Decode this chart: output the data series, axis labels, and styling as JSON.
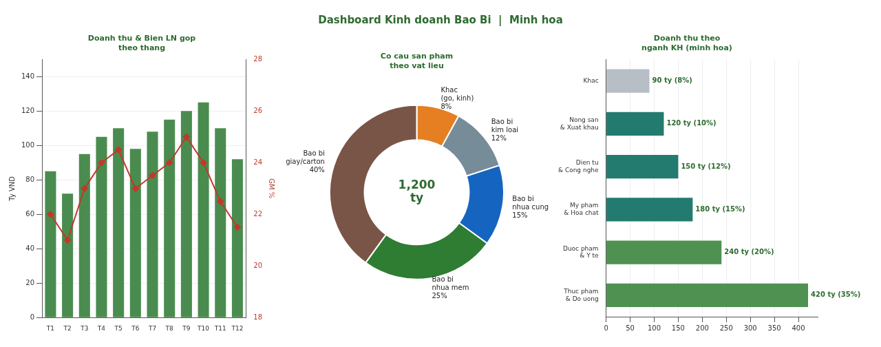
{
  "chart_data": [
    {
      "type": "other",
      "title": "Dashboard Kinh doanh Bao Bi  |  Minh hoa"
    },
    {
      "type": "bar",
      "title": "Doanh thu & Bien LN gop\ntheo thang",
      "ylabel": "Ty VND",
      "y2label": "GM %",
      "categories": [
        "T1",
        "T2",
        "T3",
        "T4",
        "T5",
        "T6",
        "T7",
        "T8",
        "T9",
        "T10",
        "T11",
        "T12"
      ],
      "series": [
        {
          "type": "bar",
          "color": "#4a8c4f",
          "values": [
            85,
            72,
            95,
            105,
            110,
            98,
            108,
            115,
            120,
            125,
            110,
            92
          ]
        },
        {
          "type": "line",
          "axis": "y2",
          "color": "#c0392b",
          "values": [
            22,
            21,
            23,
            24,
            24.5,
            23,
            23.5,
            24,
            25,
            24,
            22.5,
            21.5
          ]
        }
      ],
      "ylim": [
        0,
        150
      ],
      "yticks": [
        0,
        20,
        40,
        60,
        80,
        100,
        120,
        140
      ],
      "y2lim": [
        18,
        28
      ],
      "y2ticks": [
        18,
        20,
        22,
        24,
        26,
        28
      ],
      "grid": "y",
      "marker": "diamond",
      "line_style": "solid",
      "legend": false
    },
    {
      "type": "donut",
      "title": "Co cau san pham\ntheo vat lieu",
      "categories": [
        "Khac\n(go, kinh)",
        "Bao bi\nkim loai",
        "Bao bi\nnhua cung",
        "Bao bi\nnhua mem",
        "Bao bi\ngiay/carton"
      ],
      "values": [
        8,
        12,
        15,
        25,
        40
      ],
      "value_labels": [
        "8%",
        "12%",
        "15%",
        "25%",
        "40%"
      ],
      "colors": [
        "#e67e22",
        "#778c99",
        "#1565c0",
        "#2e7d32",
        "#795548"
      ],
      "annotations": [
        "1,200\nty"
      ],
      "legend": false
    },
    {
      "type": "bar",
      "orientation": "horizontal",
      "title": "Doanh thu theo\nnganh KH (minh hoa)",
      "categories": [
        "Khac",
        "Nong san\n& Xuat khau",
        "Dien tu\n& Cong nghe",
        "My pham\n& Hoa chat",
        "Duoc pham\n& Y te",
        "Thuc pham\n& Do uong"
      ],
      "values": [
        90,
        120,
        150,
        180,
        240,
        420
      ],
      "value_labels": [
        "90 ty (8%)",
        "120 ty (10%)",
        "150 ty (12%)",
        "180 ty (15%)",
        "240 ty (20%)",
        "420 ty (35%)"
      ],
      "colors": [
        "#b8bec6",
        "#237a6e",
        "#237a6e",
        "#237a6e",
        "#4e9150",
        "#4e9150"
      ],
      "xlim": [
        0,
        440
      ],
      "xticks": [
        0,
        50,
        100,
        150,
        200,
        250,
        300,
        350,
        400
      ],
      "grid": "x",
      "legend": false
    }
  ]
}
